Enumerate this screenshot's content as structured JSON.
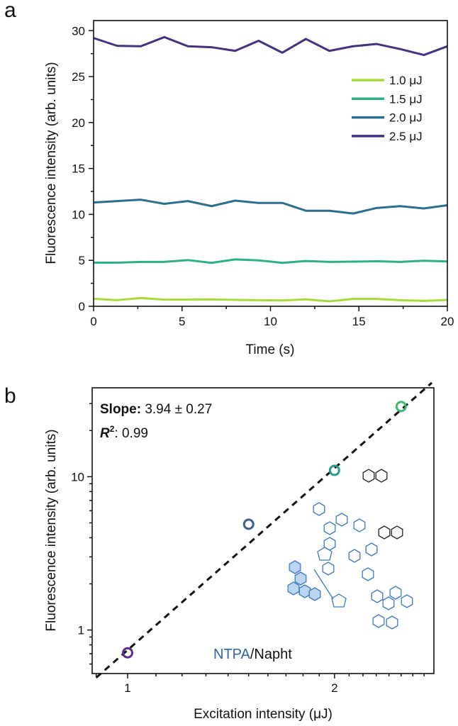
{
  "chart_data": [
    {
      "panel_label": "a",
      "type": "line",
      "xlabel": "Time (s)",
      "ylabel": "Fluorescence intensity (arb. units)",
      "xlim": [
        0,
        20
      ],
      "ylim": [
        0,
        31.1
      ],
      "xticks": [
        0,
        5,
        10,
        15,
        20
      ],
      "yticks": [
        0,
        5,
        10,
        15,
        20,
        25,
        30
      ],
      "grid": false,
      "legend_position": "right, upper-middle",
      "x": [
        0,
        1.33,
        2.67,
        4,
        5.33,
        6.67,
        8,
        9.33,
        10.67,
        12,
        13.33,
        14.67,
        16,
        17.33,
        18.67,
        20
      ],
      "series": [
        {
          "name": "1.0 μJ",
          "color": "#a8da3c",
          "values": [
            0.82,
            0.67,
            0.9,
            0.72,
            0.72,
            0.75,
            0.69,
            0.67,
            0.64,
            0.75,
            0.54,
            0.8,
            0.8,
            0.67,
            0.59,
            0.69
          ]
        },
        {
          "name": "1.5 μJ",
          "color": "#2db27f",
          "values": [
            4.75,
            4.75,
            4.83,
            4.83,
            5.03,
            4.73,
            5.1,
            5.0,
            4.73,
            4.93,
            4.83,
            4.86,
            4.9,
            4.83,
            4.96,
            4.88
          ]
        },
        {
          "name": "2.0 μJ",
          "color": "#2b6f8c",
          "values": [
            11.3,
            11.45,
            11.6,
            11.15,
            11.45,
            10.9,
            11.5,
            11.25,
            11.25,
            10.4,
            10.4,
            10.1,
            10.7,
            10.9,
            10.65,
            11.0
          ]
        },
        {
          "name": "2.5 μJ",
          "color": "#46317e",
          "values": [
            29.2,
            28.35,
            28.3,
            29.3,
            28.3,
            28.2,
            27.8,
            28.9,
            27.6,
            29.1,
            27.8,
            28.3,
            28.55,
            28.0,
            27.35,
            28.3
          ]
        }
      ]
    },
    {
      "panel_label": "b",
      "type": "scatter",
      "xlabel": "Excitation intensity (μJ)",
      "ylabel": "Fluorescence intensity (arb. units)",
      "xscale": "log",
      "yscale": "log",
      "xlim": [
        0.888,
        2.79
      ],
      "ylim": [
        0.52,
        38
      ],
      "xticks": [
        1,
        2
      ],
      "yticks": [
        1,
        10
      ],
      "grid": false,
      "points": [
        {
          "x": 1.0,
          "y": 0.71,
          "color": "#5b2d8c"
        },
        {
          "x": 1.5,
          "y": 4.9,
          "color": "#3f5f8c"
        },
        {
          "x": 2.0,
          "y": 11.0,
          "color": "#2a9a8c"
        },
        {
          "x": 2.5,
          "y": 28.7,
          "color": "#3fbb6e"
        }
      ],
      "fit": {
        "type": "power-law dashed line",
        "slope": 3.94
      },
      "annotations": {
        "slope_label": "Slope:",
        "slope_value": " 3.94 ± 0.27",
        "r2_label": "R",
        "r2_sup": "2",
        "r2_value": ": 0.99",
        "compound_blue": "NTPA",
        "compound_black": "/Napht"
      },
      "compound_color": "#2e66a3"
    }
  ]
}
